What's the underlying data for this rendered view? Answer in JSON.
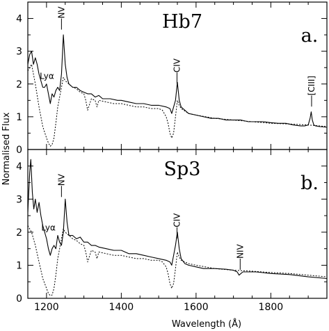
{
  "figure": {
    "ylabel": "Normalised Flux",
    "xlabel": "Wavelength (Å)"
  },
  "chart_data": [
    {
      "type": "line",
      "title": "Hb7",
      "panel_label": "a.",
      "xlim": [
        1150,
        1950
      ],
      "ylim": [
        0,
        4.5
      ],
      "x_ticks": [
        1200,
        1400,
        1600,
        1800
      ],
      "y_ticks": [
        0,
        1,
        2,
        3,
        4
      ],
      "annotations": [
        {
          "text": "Lyα",
          "x": 1208,
          "y": 2.15
        },
        {
          "text": "NV",
          "x": 1240,
          "y": 4.0
        },
        {
          "text": "CIV",
          "x": 1549,
          "y": 2.35
        },
        {
          "text": "[CIII]",
          "x": 1909,
          "y": 1.65
        }
      ],
      "series": [
        {
          "style": "solid",
          "x": [
            1150,
            1155,
            1160,
            1165,
            1170,
            1175,
            1180,
            1185,
            1190,
            1195,
            1200,
            1205,
            1210,
            1215,
            1220,
            1225,
            1230,
            1235,
            1240,
            1245,
            1250,
            1255,
            1260,
            1270,
            1280,
            1290,
            1300,
            1310,
            1320,
            1330,
            1340,
            1350,
            1370,
            1390,
            1400,
            1420,
            1440,
            1460,
            1480,
            1500,
            1520,
            1530,
            1535,
            1540,
            1545,
            1550,
            1555,
            1560,
            1570,
            1580,
            1600,
            1620,
            1640,
            1660,
            1680,
            1700,
            1720,
            1740,
            1760,
            1780,
            1800,
            1820,
            1840,
            1860,
            1880,
            1890,
            1900,
            1905,
            1908,
            1911,
            1915,
            1920,
            1930,
            1950
          ],
          "y": [
            2.6,
            2.9,
            3.0,
            2.6,
            2.8,
            2.6,
            2.3,
            2.1,
            1.9,
            1.9,
            2.0,
            1.7,
            1.4,
            1.7,
            1.6,
            1.8,
            1.9,
            1.8,
            2.3,
            3.5,
            2.6,
            2.2,
            2.0,
            1.9,
            1.9,
            1.8,
            1.75,
            1.7,
            1.7,
            1.6,
            1.65,
            1.55,
            1.55,
            1.5,
            1.5,
            1.45,
            1.4,
            1.4,
            1.35,
            1.35,
            1.3,
            1.25,
            1.1,
            1.3,
            1.5,
            2.05,
            1.5,
            1.3,
            1.2,
            1.1,
            1.05,
            1.0,
            0.95,
            0.95,
            0.9,
            0.9,
            0.9,
            0.85,
            0.85,
            0.85,
            0.82,
            0.8,
            0.8,
            0.75,
            0.72,
            0.72,
            0.75,
            0.95,
            1.15,
            0.9,
            0.75,
            0.72,
            0.7,
            0.68
          ]
        },
        {
          "style": "dashed",
          "x": [
            1150,
            1160,
            1170,
            1180,
            1190,
            1200,
            1205,
            1210,
            1215,
            1220,
            1225,
            1230,
            1235,
            1240,
            1245,
            1250,
            1260,
            1270,
            1280,
            1290,
            1300,
            1305,
            1310,
            1320,
            1330,
            1335,
            1340,
            1360,
            1380,
            1400,
            1420,
            1440,
            1460,
            1480,
            1500,
            1510,
            1520,
            1525,
            1530,
            1535,
            1540,
            1545,
            1550,
            1555,
            1560,
            1580,
            1600,
            1650,
            1700,
            1750,
            1800,
            1850,
            1900,
            1950
          ],
          "y": [
            2.4,
            2.6,
            2.0,
            1.3,
            0.7,
            0.35,
            0.2,
            0.1,
            0.15,
            0.35,
            0.8,
            1.3,
            1.6,
            1.9,
            2.2,
            2.1,
            2.0,
            1.9,
            1.85,
            1.75,
            1.7,
            1.5,
            1.2,
            1.55,
            1.5,
            1.3,
            1.5,
            1.45,
            1.4,
            1.4,
            1.35,
            1.3,
            1.3,
            1.25,
            1.25,
            1.2,
            1.0,
            0.8,
            0.5,
            0.35,
            0.5,
            1.0,
            1.5,
            1.35,
            1.25,
            1.1,
            1.05,
            0.95,
            0.9,
            0.85,
            0.8,
            0.78,
            0.75,
            0.7
          ]
        }
      ]
    },
    {
      "type": "line",
      "title": "Sp3",
      "panel_label": "b.",
      "xlim": [
        1150,
        1950
      ],
      "ylim": [
        0,
        4.5
      ],
      "x_ticks": [
        1200,
        1400,
        1600,
        1800
      ],
      "y_ticks": [
        0,
        1,
        2,
        3,
        4
      ],
      "annotations": [
        {
          "text": "Lyα",
          "x": 1212,
          "y": 2.05
        },
        {
          "text": "NV",
          "x": 1240,
          "y": 3.4
        },
        {
          "text": "CIV",
          "x": 1549,
          "y": 2.15
        },
        {
          "text": "NIV",
          "x": 1718,
          "y": 1.2
        }
      ],
      "series": [
        {
          "style": "solid",
          "x": [
            1150,
            1155,
            1158,
            1162,
            1166,
            1170,
            1175,
            1180,
            1185,
            1190,
            1195,
            1200,
            1205,
            1210,
            1215,
            1220,
            1225,
            1230,
            1235,
            1240,
            1245,
            1250,
            1255,
            1260,
            1270,
            1280,
            1290,
            1300,
            1310,
            1320,
            1330,
            1340,
            1360,
            1380,
            1400,
            1420,
            1440,
            1460,
            1480,
            1500,
            1520,
            1530,
            1535,
            1540,
            1545,
            1550,
            1555,
            1560,
            1570,
            1580,
            1600,
            1620,
            1650,
            1680,
            1700,
            1710,
            1715,
            1720,
            1725,
            1730,
            1760,
            1800,
            1850,
            1900,
            1950
          ],
          "y": [
            2.6,
            3.8,
            4.2,
            3.2,
            2.7,
            3.0,
            2.6,
            2.9,
            2.5,
            2.2,
            2.0,
            1.8,
            1.5,
            1.3,
            1.5,
            1.6,
            1.5,
            1.9,
            1.7,
            1.6,
            2.0,
            3.0,
            2.3,
            1.9,
            1.9,
            1.8,
            1.85,
            1.7,
            1.7,
            1.6,
            1.6,
            1.55,
            1.5,
            1.45,
            1.45,
            1.35,
            1.35,
            1.3,
            1.25,
            1.2,
            1.15,
            1.1,
            1.0,
            1.3,
            1.6,
            2.0,
            1.5,
            1.2,
            1.05,
            1.0,
            0.95,
            0.9,
            0.9,
            0.88,
            0.85,
            0.8,
            0.7,
            0.75,
            0.8,
            0.8,
            0.8,
            0.75,
            0.72,
            0.65,
            0.6
          ]
        },
        {
          "style": "dashed",
          "x": [
            1150,
            1160,
            1170,
            1180,
            1190,
            1200,
            1205,
            1210,
            1215,
            1220,
            1225,
            1230,
            1235,
            1240,
            1245,
            1250,
            1260,
            1270,
            1280,
            1290,
            1300,
            1305,
            1310,
            1320,
            1330,
            1335,
            1340,
            1360,
            1380,
            1400,
            1420,
            1440,
            1460,
            1480,
            1500,
            1510,
            1520,
            1525,
            1530,
            1535,
            1540,
            1545,
            1550,
            1555,
            1560,
            1580,
            1600,
            1650,
            1700,
            1750,
            1800,
            1850,
            1900,
            1950
          ],
          "y": [
            2.2,
            2.0,
            1.6,
            1.1,
            0.6,
            0.3,
            0.15,
            0.08,
            0.1,
            0.3,
            0.7,
            1.2,
            1.5,
            1.8,
            2.1,
            2.0,
            1.9,
            1.8,
            1.75,
            1.65,
            1.6,
            1.4,
            1.1,
            1.45,
            1.4,
            1.2,
            1.4,
            1.35,
            1.3,
            1.3,
            1.25,
            1.2,
            1.2,
            1.15,
            1.15,
            1.1,
            0.95,
            0.75,
            0.45,
            0.3,
            0.45,
            0.9,
            1.4,
            1.25,
            1.15,
            1.05,
            1.0,
            0.9,
            0.85,
            0.82,
            0.78,
            0.75,
            0.7,
            0.65
          ]
        }
      ]
    }
  ]
}
